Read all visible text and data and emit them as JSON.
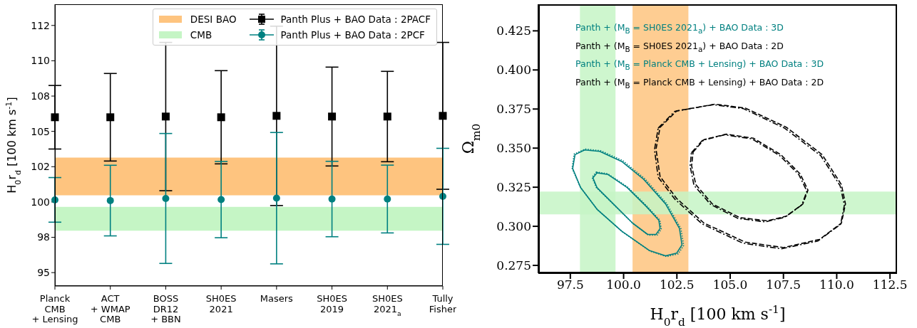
{
  "chart_data": [
    {
      "type": "scatter",
      "ylabel": "H$_{0}$r$_{d}$ [100 km s$^{-1}$]",
      "categories": [
        "Planck\nCMB\n+ Lensing",
        "ACT\n+ WMAP\nCMB",
        "BOSS\nDR12\n+ BBN",
        "SH0ES\n2021",
        "Masers",
        "SH0ES\n2019",
        "SH0ES\n2021$_{a}$",
        "Tully\nFisher"
      ],
      "series": [
        {
          "name": "Panth Plus + BAO Data : 2PACF",
          "color": "#000000",
          "marker": "square",
          "values": [
            106.0,
            106.0,
            106.05,
            106.0,
            106.1,
            106.05,
            106.05,
            106.1
          ],
          "errors": [
            2.25,
            3.1,
            5.25,
            3.3,
            6.35,
            3.5,
            3.2,
            5.2
          ]
        },
        {
          "name": "Panth Plus + BAO Data : 2PCF",
          "color": "#008080",
          "marker": "circle",
          "values": [
            100.15,
            100.1,
            100.25,
            100.17,
            100.27,
            100.21,
            100.21,
            100.4
          ],
          "errors": [
            1.58,
            2.5,
            4.6,
            2.7,
            4.65,
            2.67,
            2.4,
            3.4
          ]
        }
      ],
      "bands": [
        {
          "axis": "y",
          "from": 100.47,
          "to": 103.14,
          "label": "DESI BAO",
          "color": "#fec47f"
        },
        {
          "axis": "y",
          "from": 97.97,
          "to": 99.66,
          "label": "CMB",
          "color": "#c5f5c5"
        }
      ],
      "ylim": [
        94.05,
        114.0
      ],
      "yticks": [
        95,
        {
          "value": 97.5,
          "label": "98"
        },
        100,
        {
          "value": 102.5,
          "label": "102"
        },
        105,
        {
          "value": 107.5,
          "label": "108"
        },
        110,
        {
          "value": 112.5,
          "label": "112"
        }
      ],
      "legend": "top right",
      "grid": false
    },
    {
      "type": "line",
      "xlabel": "H$_{0}$r$_{d}$ [100 km s$^{-1}$]",
      "ylabel": "Ω$_{m0}$",
      "annotations": [
        "Panth + (M$_{B}$ = SH0ES 2021$_{a}$) + BAO Data : 3D",
        "Panth + (M$_{B}$ = SH0ES 2021$_{a}$) + BAO Data : 2D",
        "Panth + (M$_{B}$ = Planck CMB + Lensing) + BAO Data : 3D",
        "Panth + (M$_{B}$ = Planck CMB + Lensing) + BAO Data : 2D"
      ],
      "bands": [
        {
          "axis": "x",
          "from": 97.95,
          "to": 99.62,
          "color": "#c5f5c5"
        },
        {
          "axis": "x",
          "from": 100.42,
          "to": 103.04,
          "color": "#fec47f"
        },
        {
          "axis": "y",
          "from": 0.3077,
          "to": 0.3222,
          "color": "#c5f5c5"
        }
      ],
      "xlim": [
        96.0,
        112.83
      ],
      "xticks": [
        97.5,
        {
          "value": 100,
          "label": "100.0"
        },
        102.5,
        {
          "value": 105,
          "label": "105.0"
        },
        107.5,
        {
          "value": 110,
          "label": "110.0"
        },
        112.5
      ],
      "ylim": [
        0.27,
        0.442
      ],
      "yticks": [
        0.275,
        {
          "value": 0.3,
          "label": "0.300"
        },
        0.325,
        {
          "value": 0.35,
          "label": "0.350"
        },
        0.375,
        {
          "value": 0.4,
          "label": "0.400"
        },
        0.425
      ],
      "grid": false
    }
  ]
}
